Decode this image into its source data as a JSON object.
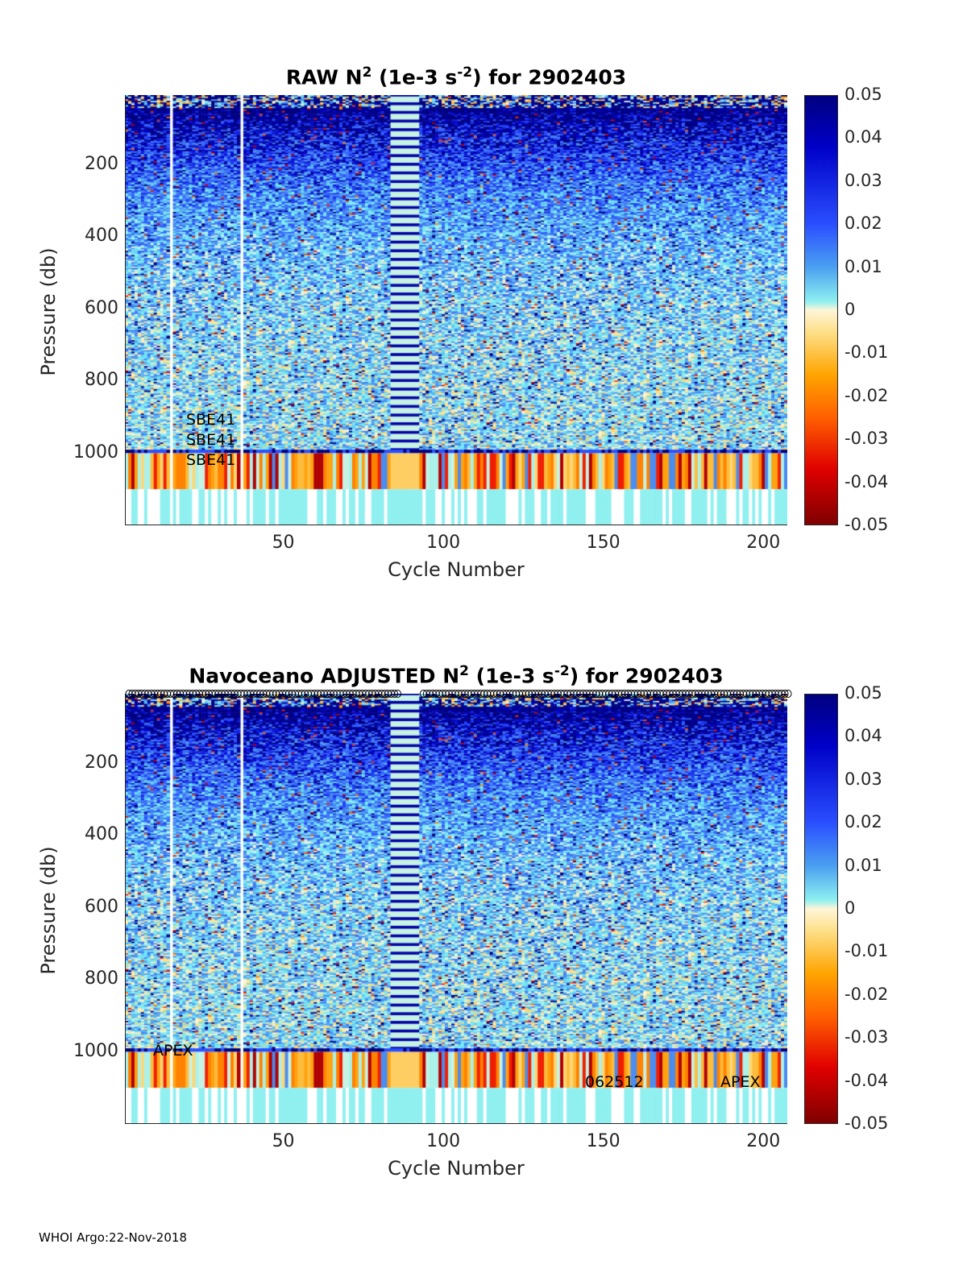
{
  "chart_data": [
    {
      "type": "heatmap",
      "title_main": "RAW N",
      "title_sup": "2",
      "title_mid": " (1e-3 s",
      "title_sup2": "-2",
      "title_end": ") for 2902403",
      "xlabel": "Cycle Number",
      "ylabel": "Pressure (db)",
      "xlim": [
        0.5,
        207.5
      ],
      "ylim": [
        6,
        1200
      ],
      "y_reversed": true,
      "xticks": [
        "50",
        "100",
        "150",
        "200"
      ],
      "xtick_values": [
        50,
        100,
        150,
        200
      ],
      "yticks": [
        "200",
        "400",
        "600",
        "800",
        "1000"
      ],
      "ytick_values": [
        200,
        400,
        600,
        800,
        1000
      ],
      "colorbar": {
        "clim": [
          -0.05,
          0.05
        ],
        "ticks": [
          "0.05",
          "0.04",
          "0.03",
          "0.02",
          "0.01",
          "0",
          "-0.01",
          "-0.02",
          "-0.03",
          "-0.04",
          "-0.05"
        ]
      },
      "annotations": [
        "SBE41",
        "SBE41",
        "SBE41"
      ]
    },
    {
      "type": "heatmap",
      "title_main": "Navoceano  ADJUSTED N",
      "title_sup": "2",
      "title_mid": " (1e-3 s",
      "title_sup2": "-2",
      "title_end": ") for 2902403",
      "xlabel": "Cycle Number",
      "ylabel": "Pressure (db)",
      "xlim": [
        0.5,
        207.5
      ],
      "ylim": [
        6,
        1200
      ],
      "y_reversed": true,
      "xticks": [
        "50",
        "100",
        "150",
        "200"
      ],
      "xtick_values": [
        50,
        100,
        150,
        200
      ],
      "yticks": [
        "200",
        "400",
        "600",
        "800",
        "1000"
      ],
      "ytick_values": [
        200,
        400,
        600,
        800,
        1000
      ],
      "colorbar": {
        "clim": [
          -0.05,
          0.05
        ],
        "ticks": [
          "0.05",
          "0.04",
          "0.03",
          "0.02",
          "0.01",
          "0",
          "-0.01",
          "-0.02",
          "-0.03",
          "-0.04",
          "-0.05"
        ]
      },
      "annotations": [
        "APEX",
        "062512",
        "APEX"
      ]
    }
  ],
  "footer": "WHOI Argo:22-Nov-2018"
}
